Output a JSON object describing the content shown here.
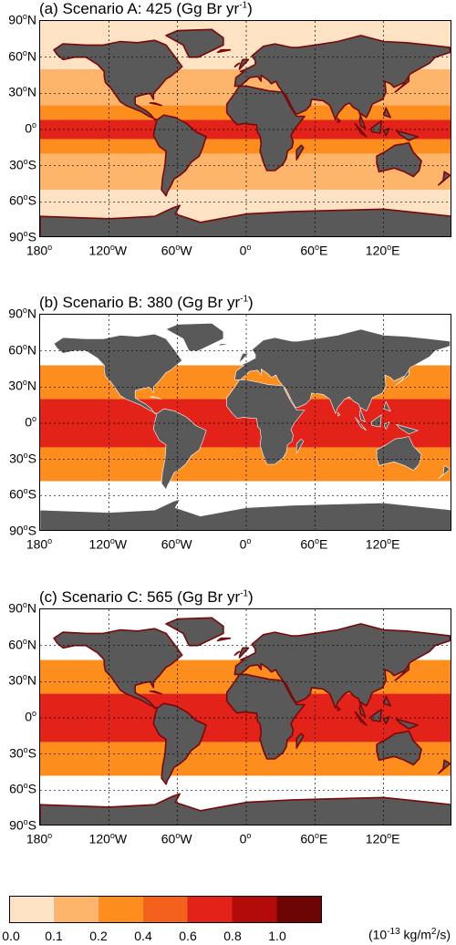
{
  "panels": [
    {
      "title_prefix": "(a) Scenario A: 425 (Gg Br yr",
      "title_sup": "-1",
      "title_suffix": ")",
      "bands": [
        {
          "lat_from": 90,
          "lat_to": 50,
          "bin": 0
        },
        {
          "lat_from": 50,
          "lat_to": 20,
          "bin": 1
        },
        {
          "lat_from": 20,
          "lat_to": 8,
          "bin": 2
        },
        {
          "lat_from": 8,
          "lat_to": -8,
          "bin": 4
        },
        {
          "lat_from": -8,
          "lat_to": -20,
          "bin": 2
        },
        {
          "lat_from": -20,
          "lat_to": -50,
          "bin": 1
        },
        {
          "lat_from": -50,
          "lat_to": -90,
          "bin": 0
        }
      ]
    },
    {
      "title_prefix": "(b) Scenario B: 380 (Gg Br yr",
      "title_sup": "-1",
      "title_suffix": ")",
      "bands": [
        {
          "lat_from": 90,
          "lat_to": 48,
          "bin": -1
        },
        {
          "lat_from": 48,
          "lat_to": 20,
          "bin": 2
        },
        {
          "lat_from": 20,
          "lat_to": -20,
          "bin": 4
        },
        {
          "lat_from": -20,
          "lat_to": -48,
          "bin": 2
        },
        {
          "lat_from": -48,
          "lat_to": -90,
          "bin": -1
        }
      ]
    },
    {
      "title_prefix": "(c) Scenario C: 565 (Gg Br yr",
      "title_sup": "-1",
      "title_suffix": ")",
      "bands": [
        {
          "lat_from": 90,
          "lat_to": 48,
          "bin": -1
        },
        {
          "lat_from": 48,
          "lat_to": 20,
          "bin": 2
        },
        {
          "lat_from": 20,
          "lat_to": -20,
          "bin": 4
        },
        {
          "lat_from": -20,
          "lat_to": -48,
          "bin": 2
        },
        {
          "lat_from": -48,
          "lat_to": -90,
          "bin": -1
        }
      ]
    }
  ],
  "chart_data": {
    "type": "heatmap",
    "description_units": "kg/m2/s x 1e-13",
    "xlim": [
      -180,
      180
    ],
    "ylim": [
      -90,
      90
    ],
    "y_ticks": [
      {
        "value": 90,
        "num": "90",
        "hemi": "N"
      },
      {
        "value": 60,
        "num": "60",
        "hemi": "N"
      },
      {
        "value": 30,
        "num": "30",
        "hemi": "N"
      },
      {
        "value": 0,
        "num": "0",
        "hemi": ""
      },
      {
        "value": -30,
        "num": "30",
        "hemi": "S"
      },
      {
        "value": -60,
        "num": "60",
        "hemi": "S"
      },
      {
        "value": -90,
        "num": "90",
        "hemi": "S"
      }
    ],
    "x_ticks": [
      {
        "value": -180,
        "num": "180",
        "hemi": ""
      },
      {
        "value": -120,
        "num": "120",
        "hemi": "W"
      },
      {
        "value": -60,
        "num": "60",
        "hemi": "W"
      },
      {
        "value": 0,
        "num": "0",
        "hemi": ""
      },
      {
        "value": 60,
        "num": "60",
        "hemi": "E"
      },
      {
        "value": 120,
        "num": "120",
        "hemi": "E"
      }
    ],
    "degree_symbol": "o",
    "colorbar": {
      "levels": [
        "0.0",
        "0.1",
        "0.2",
        "0.4",
        "0.6",
        "0.8",
        "1.0"
      ],
      "level_values": [
        0.0,
        0.1,
        0.2,
        0.4,
        0.6,
        0.8,
        1.0
      ],
      "colors": [
        "#fde2c4",
        "#fdb46b",
        "#fd8d1c",
        "#f4611c",
        "#e32319",
        "#b30a0a",
        "#6e0505"
      ],
      "units_prefix": "(10",
      "units_exp": "-13",
      "units_mid": " kg/m",
      "units_exp2": "2",
      "units_suffix": "/s)"
    },
    "land_color": "#595959",
    "coast_color": "#7a0808"
  }
}
